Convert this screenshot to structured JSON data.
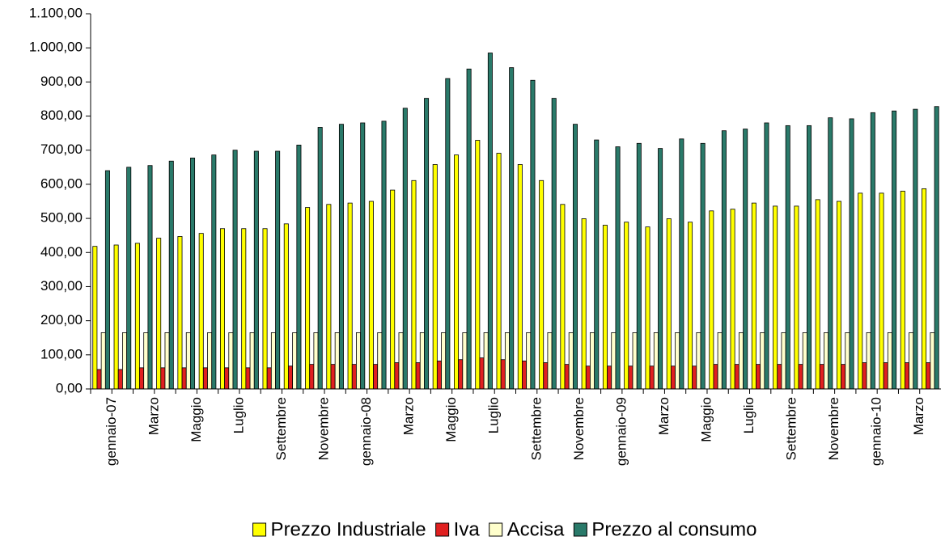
{
  "chart_data": {
    "type": "bar",
    "categories": [
      "gennaio-07",
      null,
      "Marzo",
      null,
      "Maggio",
      null,
      "Luglio",
      null,
      "Settembre",
      null,
      "Novembre",
      null,
      "gennaio-08",
      null,
      "Marzo",
      null,
      "Maggio",
      null,
      "Luglio",
      null,
      "Settembre",
      null,
      "Novembre",
      null,
      "gennaio-09",
      null,
      "Marzo",
      null,
      "Maggio",
      null,
      "Luglio",
      null,
      "Settembre",
      null,
      "Novembre",
      null,
      "gennaio-10",
      null,
      "Marzo",
      null
    ],
    "series": [
      {
        "name": "Prezzo Industriale",
        "color": "#ffff00",
        "values": [
          418,
          422,
          427,
          442,
          447,
          456,
          470,
          470,
          470,
          484,
          532,
          541,
          545,
          550,
          583,
          611,
          658,
          686,
          729,
          691,
          658,
          611,
          541,
          499,
          480,
          489,
          475,
          499,
          489,
          522,
          527,
          545,
          536,
          536,
          555,
          550,
          574,
          574,
          580,
          587
        ]
      },
      {
        "name": "Iva",
        "color": "#e02020",
        "values": [
          57,
          57,
          62,
          62,
          62,
          62,
          62,
          62,
          62,
          67,
          72,
          72,
          72,
          72,
          77,
          77,
          82,
          86,
          91,
          86,
          82,
          77,
          72,
          67,
          67,
          67,
          67,
          67,
          67,
          72,
          72,
          72,
          72,
          72,
          72,
          72,
          77,
          77,
          77,
          77
        ]
      },
      {
        "name": "Accisa",
        "color": "#ffffcc",
        "values": [
          165,
          165,
          165,
          165,
          165,
          165,
          165,
          165,
          165,
          165,
          165,
          165,
          165,
          165,
          165,
          165,
          165,
          165,
          165,
          165,
          165,
          165,
          165,
          165,
          165,
          165,
          165,
          165,
          165,
          165,
          165,
          165,
          165,
          165,
          165,
          165,
          165,
          165,
          165,
          165
        ]
      },
      {
        "name": "Prezzo al consumo",
        "color": "#2a7a6a",
        "values": [
          640,
          650,
          655,
          668,
          677,
          686,
          700,
          697,
          697,
          715,
          767,
          776,
          780,
          785,
          823,
          852,
          910,
          938,
          985,
          942,
          905,
          852,
          776,
          730,
          710,
          720,
          705,
          733,
          720,
          757,
          762,
          780,
          772,
          772,
          795,
          792,
          810,
          815,
          820,
          828
        ]
      }
    ],
    "ylim": [
      0,
      1100
    ],
    "yticks": [
      {
        "value": 0,
        "label": "0,00"
      },
      {
        "value": 100,
        "label": "100,00"
      },
      {
        "value": 200,
        "label": "200,00"
      },
      {
        "value": 300,
        "label": "300,00"
      },
      {
        "value": 400,
        "label": "400,00"
      },
      {
        "value": 500,
        "label": "500,00"
      },
      {
        "value": 600,
        "label": "600,00"
      },
      {
        "value": 700,
        "label": "700,00"
      },
      {
        "value": 800,
        "label": "800,00"
      },
      {
        "value": 900,
        "label": "900,00"
      },
      {
        "value": 1000,
        "label": "1.000,00"
      },
      {
        "value": 1100,
        "label": "1.100,00"
      }
    ],
    "legend": "bottom"
  }
}
